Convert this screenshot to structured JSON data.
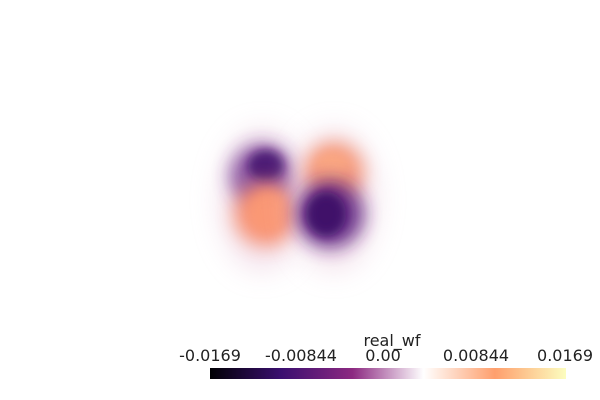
{
  "scene": {
    "background": "#ffffff",
    "colormap_stops": [
      "#000004",
      "#3b0f70",
      "#8c2981",
      "#ffffff",
      "#fe9f6d",
      "#fcfdbf"
    ]
  },
  "colorbar": {
    "title": "real_wf",
    "ticks": [
      "-0.0169",
      "-0.00844",
      "0.00",
      "0.00844",
      "0.0169"
    ],
    "range": [
      -0.0169,
      0.0169
    ]
  }
}
